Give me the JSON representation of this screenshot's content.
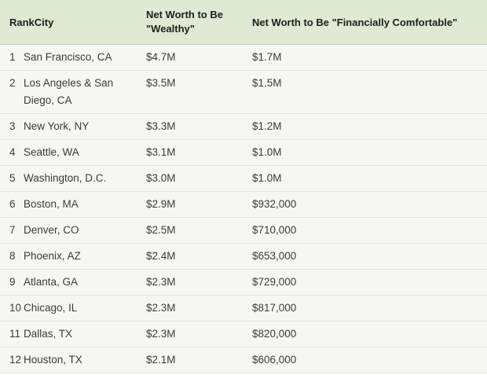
{
  "table": {
    "header": {
      "rank_label": "Rank",
      "city_label": "City",
      "wealthy_label": "Net Worth to Be \"Wealthy\"",
      "comfortable_label": "Net Worth to Be \"Financially Comfortable\""
    },
    "rows": [
      {
        "rank": "1",
        "city": "San Francisco, CA",
        "wealthy": "$4.7M",
        "comfortable": "$1.7M"
      },
      {
        "rank": "2",
        "city": "Los Angeles & San Diego, CA",
        "wealthy": "$3.5M",
        "comfortable": "$1.5M"
      },
      {
        "rank": "3",
        "city": "New York, NY",
        "wealthy": "$3.3M",
        "comfortable": "$1.2M"
      },
      {
        "rank": "4",
        "city": "Seattle, WA",
        "wealthy": "$3.1M",
        "comfortable": "$1.0M"
      },
      {
        "rank": "5",
        "city": "Washington, D.C.",
        "wealthy": "$3.0M",
        "comfortable": "$1.0M"
      },
      {
        "rank": "6",
        "city": "Boston, MA",
        "wealthy": "$2.9M",
        "comfortable": "$932,000"
      },
      {
        "rank": "7",
        "city": "Denver, CO",
        "wealthy": "$2.5M",
        "comfortable": "$710,000"
      },
      {
        "rank": "8",
        "city": "Phoenix, AZ",
        "wealthy": "$2.4M",
        "comfortable": "$653,000"
      },
      {
        "rank": "9",
        "city": "Atlanta, GA",
        "wealthy": "$2.3M",
        "comfortable": "$729,000"
      },
      {
        "rank": "10",
        "city": "Chicago, IL",
        "wealthy": "$2.3M",
        "comfortable": "$817,000"
      },
      {
        "rank": "11",
        "city": "Dallas, TX",
        "wealthy": "$2.3M",
        "comfortable": "$820,000"
      },
      {
        "rank": "12",
        "city": "Houston, TX",
        "wealthy": "$2.1M",
        "comfortable": "$606,000"
      }
    ]
  },
  "chart_data": {
    "type": "table",
    "columns": [
      "Rank",
      "City",
      "Net Worth to Be \"Wealthy\"",
      "Net Worth to Be \"Financially Comfortable\""
    ],
    "rows": [
      [
        1,
        "San Francisco, CA",
        "$4.7M",
        "$1.7M"
      ],
      [
        2,
        "Los Angeles & San Diego, CA",
        "$3.5M",
        "$1.5M"
      ],
      [
        3,
        "New York, NY",
        "$3.3M",
        "$1.2M"
      ],
      [
        4,
        "Seattle, WA",
        "$3.1M",
        "$1.0M"
      ],
      [
        5,
        "Washington, D.C.",
        "$3.0M",
        "$1.0M"
      ],
      [
        6,
        "Boston, MA",
        "$2.9M",
        "$932,000"
      ],
      [
        7,
        "Denver, CO",
        "$2.5M",
        "$710,000"
      ],
      [
        8,
        "Phoenix, AZ",
        "$2.4M",
        "$653,000"
      ],
      [
        9,
        "Atlanta, GA",
        "$2.3M",
        "$729,000"
      ],
      [
        10,
        "Chicago, IL",
        "$2.3M",
        "$817,000"
      ],
      [
        11,
        "Dallas, TX",
        "$2.3M",
        "$820,000"
      ],
      [
        12,
        "Houston, TX",
        "$2.1M",
        "$606,000"
      ]
    ],
    "wealthy_values_millions_usd": [
      4.7,
      3.5,
      3.3,
      3.1,
      3.0,
      2.9,
      2.5,
      2.4,
      2.3,
      2.3,
      2.3,
      2.1
    ],
    "comfortable_values_usd": [
      1700000,
      1500000,
      1200000,
      1000000,
      1000000,
      932000,
      710000,
      653000,
      729000,
      817000,
      820000,
      606000
    ]
  },
  "colors": {
    "header_bg": "#dfe9d3",
    "header_text": "#1e1e1e",
    "row_bg": "#f6f6f4",
    "divider": "#e2e2df",
    "body_text": "#3b3b3b"
  }
}
